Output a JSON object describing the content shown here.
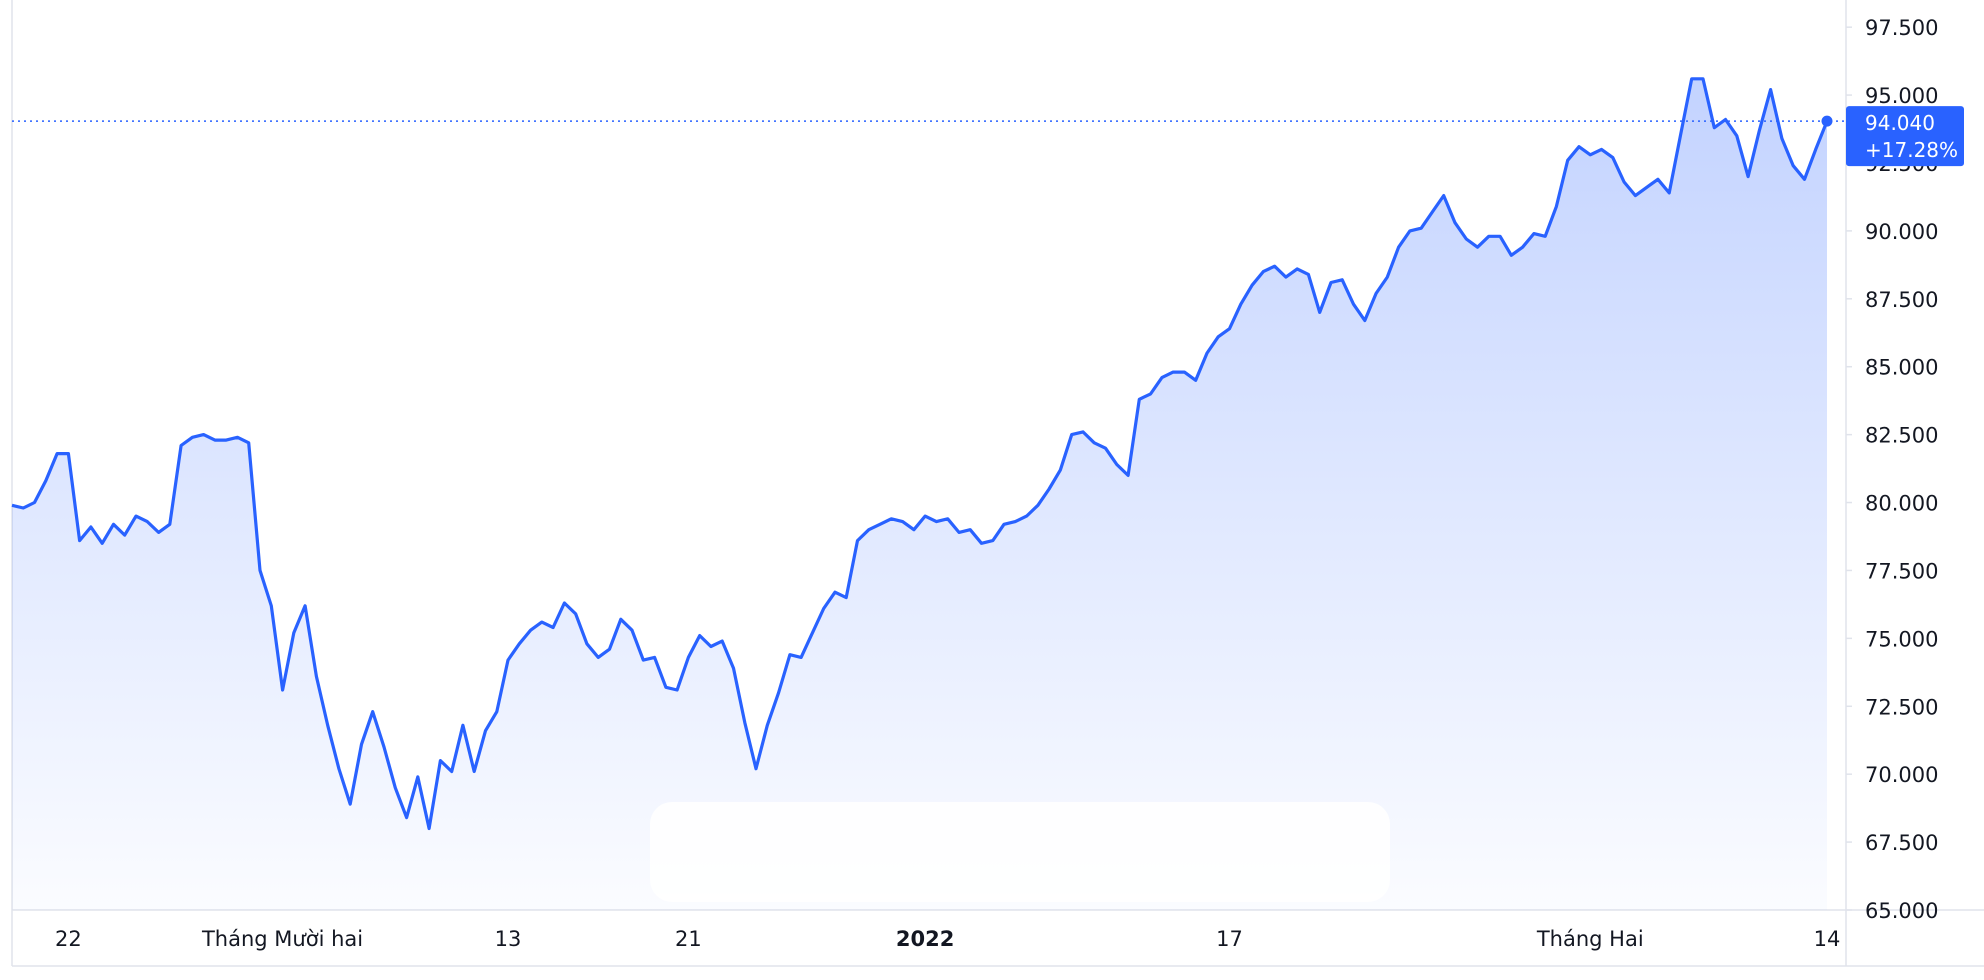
{
  "chart_data": {
    "type": "area",
    "y_ticks": [
      "97.500",
      "95.000",
      "92.500",
      "90.000",
      "87.500",
      "85.000",
      "82.500",
      "80.000",
      "77.500",
      "75.000",
      "72.500",
      "70.000",
      "67.500",
      "65.000"
    ],
    "ylim": [
      65000,
      98500
    ],
    "x_ticks": [
      {
        "label": "22",
        "index": 5,
        "bold": false
      },
      {
        "label": "Tháng Mười hai",
        "index": 24,
        "bold": false
      },
      {
        "label": "13",
        "index": 44,
        "bold": false
      },
      {
        "label": "21",
        "index": 60,
        "bold": false
      },
      {
        "label": "2022",
        "index": 81,
        "bold": true
      },
      {
        "label": "17",
        "index": 108,
        "bold": false
      },
      {
        "label": "Tháng Hai",
        "index": 140,
        "bold": false
      },
      {
        "label": "14",
        "index": 161,
        "bold": false
      }
    ],
    "series": [
      {
        "values": [
          79900,
          79800,
          80000,
          80800,
          81800,
          81800,
          78600,
          79100,
          78500,
          79200,
          78800,
          79500,
          79300,
          78900,
          79200,
          82100,
          82400,
          82500,
          82300,
          82300,
          82400,
          82200,
          77500,
          76200,
          73100,
          75200,
          76200,
          73600,
          71800,
          70200,
          68900,
          71100,
          72300,
          71000,
          69500,
          68400,
          69900,
          68000,
          70500,
          70100,
          71800,
          70100,
          71600,
          72300,
          74200,
          74800,
          75300,
          75600,
          75400,
          76300,
          75900,
          74800,
          74300,
          74600,
          75700,
          75300,
          74200,
          74300,
          73200,
          73100,
          74300,
          75100,
          74700,
          74900,
          73900,
          71900,
          70200,
          71800,
          73000,
          74400,
          74300,
          75200,
          76100,
          76700,
          76500,
          78600,
          79000,
          79200,
          79400,
          79300,
          79000,
          79500,
          79300,
          79400,
          78900,
          79000,
          78500,
          78600,
          79200,
          79300,
          79500,
          79900,
          80500,
          81200,
          82500,
          82600,
          82200,
          82000,
          81400,
          81000,
          83800,
          84000,
          84600,
          84800,
          84800,
          84500,
          85500,
          86100,
          86400,
          87300,
          88000,
          88500,
          88700,
          88300,
          88600,
          88400,
          87000,
          88100,
          88200,
          87300,
          86700,
          87700,
          88300,
          89400,
          90000,
          90100,
          90700,
          91300,
          90300,
          89700,
          89400,
          89800,
          89800,
          89100,
          89400,
          89900,
          89800,
          90900,
          92600,
          93100,
          92800,
          93000,
          92700,
          91800,
          91300,
          91600,
          91900,
          91400,
          93500,
          95600,
          95600,
          93800,
          94100,
          93500,
          92000,
          93700,
          95200,
          93400,
          92400,
          91900,
          93000,
          94040
        ],
        "last_value": "94.040",
        "last_change": "+17.28%"
      }
    ],
    "colors": {
      "line": "#2962ff",
      "fill": "#2962ff",
      "badge": "#2962ff",
      "grid": "#e0e3eb",
      "text": "#131722"
    }
  }
}
